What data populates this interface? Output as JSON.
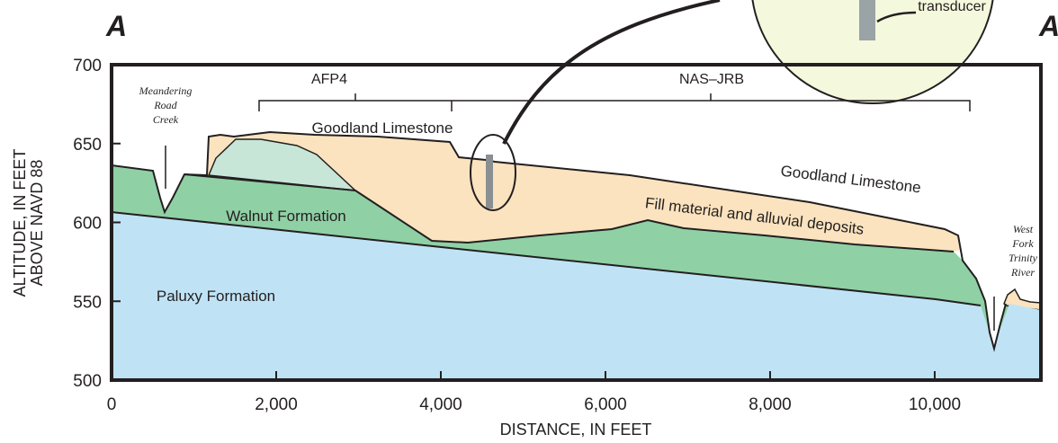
{
  "section_labels": {
    "left": "A",
    "right": "A"
  },
  "inset": {
    "label": "transducer"
  },
  "y_axis": {
    "title_lines": [
      "ALTITUDE, IN FEET",
      "ABOVE NAVD 88"
    ],
    "lim": [
      500,
      700
    ],
    "ticks": [
      500,
      550,
      600,
      650,
      700
    ]
  },
  "x_axis": {
    "title": "DISTANCE, IN FEET",
    "lim": [
      0,
      11290
    ],
    "ticks": [
      0,
      {
        "value": 2000,
        "label": "2,000"
      },
      {
        "value": 4000,
        "label": "4,000"
      },
      {
        "value": 6000,
        "label": "6,000"
      },
      {
        "value": 8000,
        "label": "8,000"
      },
      {
        "value": 10000,
        "label": "10,000"
      }
    ]
  },
  "brackets": [
    {
      "label": "AFP4"
    },
    {
      "label": "NAS–JRB"
    }
  ],
  "streams": [
    {
      "lines": [
        "Meandering",
        "Road",
        "Creek"
      ]
    },
    {
      "lines": [
        "West",
        "Fork",
        "Trinity",
        "River"
      ]
    }
  ],
  "units": [
    "Goodland Limestone",
    "Walnut Formation",
    "Paluxy Formation",
    "Goodland Limestone",
    "Fill material and alluvial deposits"
  ]
}
